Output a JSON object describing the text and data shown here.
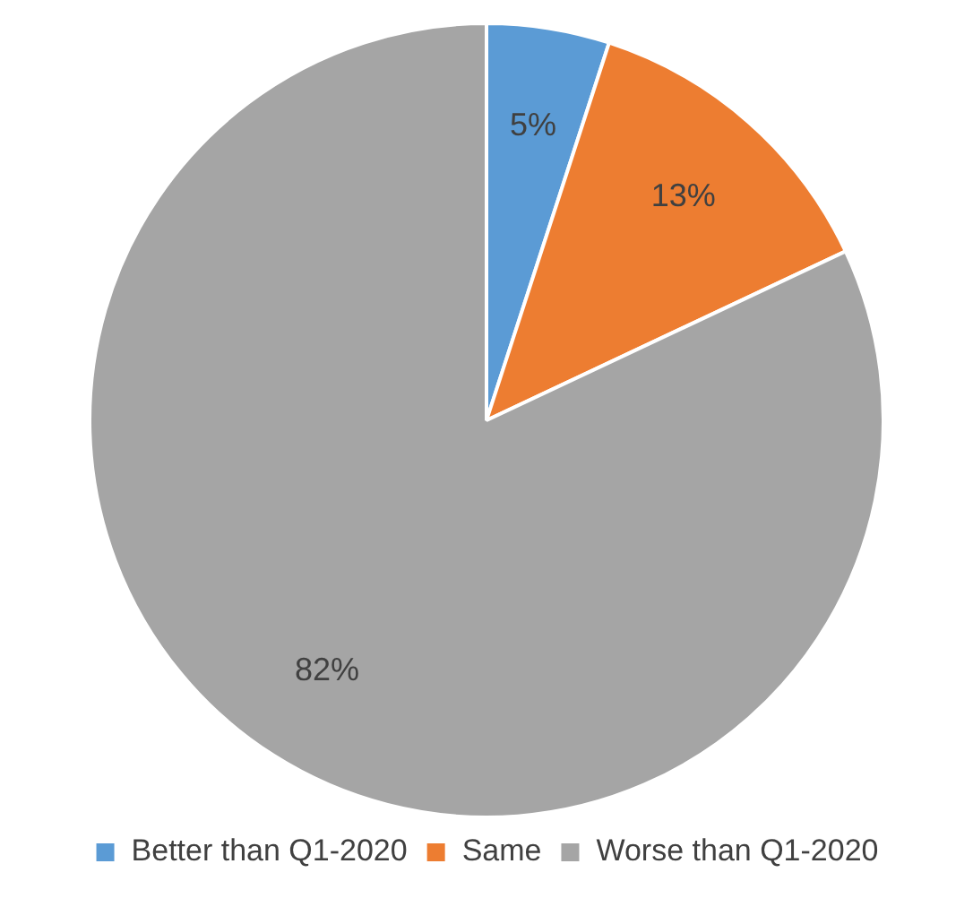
{
  "chart_data": {
    "type": "pie",
    "categories": [
      "Better than Q1-2020",
      "Same",
      "Worse than Q1-2020"
    ],
    "values": [
      5,
      13,
      82
    ],
    "colors": [
      "#5b9bd5",
      "#ed7d31",
      "#a5a5a5"
    ],
    "value_labels": [
      "5%",
      "13%",
      "82%"
    ],
    "legend": "bottom"
  }
}
